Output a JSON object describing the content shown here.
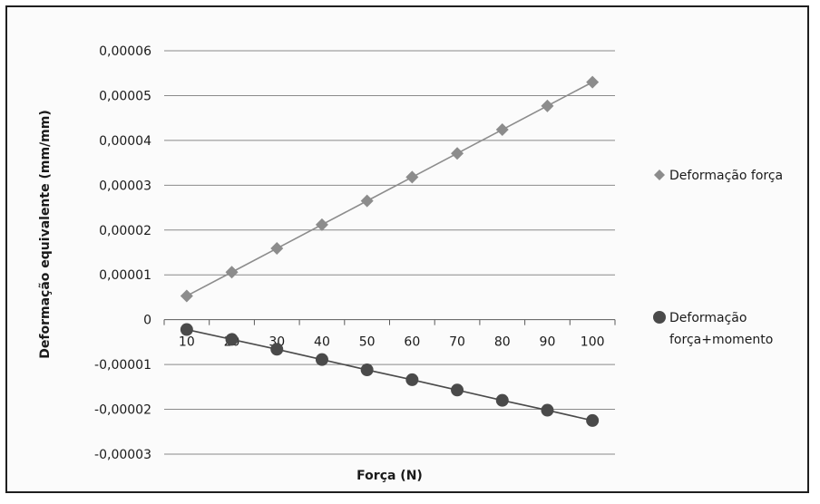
{
  "chart_data": {
    "type": "line",
    "title": "",
    "xlabel": "Força (N)",
    "ylabel": "Deformação equivalente (mm/mm)",
    "x": [
      10,
      20,
      30,
      40,
      50,
      60,
      70,
      80,
      90,
      100
    ],
    "x_tick_labels": [
      "10",
      "20",
      "30",
      "40",
      "50",
      "60",
      "70",
      "80",
      "90",
      "100"
    ],
    "ylim": [
      -3e-05,
      6e-05
    ],
    "y_ticks": [
      6e-05,
      5e-05,
      4e-05,
      3e-05,
      2e-05,
      1e-05,
      0,
      -1e-05,
      -2e-05,
      -3e-05
    ],
    "y_tick_labels": [
      "0,00006",
      "0,00005",
      "0,00004",
      "0,00003",
      "0,00002",
      "0,00001",
      "0",
      "-0,00001",
      "-0,00002",
      "-0,00003"
    ],
    "grid": true,
    "legend_position": "right",
    "series": [
      {
        "name": "Deformação força",
        "marker": "diamond",
        "color": "#8c8c8c",
        "legend_lines": [
          "Deformação força"
        ],
        "values": [
          5.3e-06,
          1.06e-05,
          1.59e-05,
          2.12e-05,
          2.65e-05,
          3.18e-05,
          3.71e-05,
          4.24e-05,
          4.77e-05,
          5.3e-05
        ]
      },
      {
        "name": "Deformação força+momento",
        "marker": "circle",
        "color": "#4a4a4a",
        "legend_lines": [
          "Deformação",
          "força+momento"
        ],
        "values": [
          -2.2e-06,
          -4.4e-06,
          -6.6e-06,
          -8.9e-06,
          -1.12e-05,
          -1.34e-05,
          -1.57e-05,
          -1.8e-05,
          -2.02e-05,
          -2.25e-05
        ]
      }
    ]
  }
}
